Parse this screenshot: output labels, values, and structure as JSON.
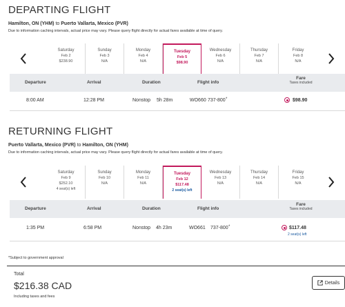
{
  "departing": {
    "title": "DEPARTING FLIGHT",
    "origin": "Hamilton, ON (YHM)",
    "to": "to",
    "destination": "Puerto Vallarta, Mexico (PVR)",
    "disclaimer": "Due to information caching intervals, actual price may vary. Please query flight directly for actual fares available at time of query.",
    "days": [
      {
        "weekday": "Saturday",
        "date": "Feb 2",
        "price": "$238.90",
        "seats": ""
      },
      {
        "weekday": "Sunday",
        "date": "Feb 3",
        "price": "N/A",
        "seats": ""
      },
      {
        "weekday": "Monday",
        "date": "Feb 4",
        "price": "N/A",
        "seats": ""
      },
      {
        "weekday": "Tuesday",
        "date": "Feb 5",
        "price": "$98.90",
        "seats": ""
      },
      {
        "weekday": "Wednesday",
        "date": "Feb 6",
        "price": "N/A",
        "seats": ""
      },
      {
        "weekday": "Thursday",
        "date": "Feb 7",
        "price": "N/A",
        "seats": ""
      },
      {
        "weekday": "Friday",
        "date": "Feb 8",
        "price": "N/A",
        "seats": ""
      }
    ],
    "headers": {
      "departure": "Departure",
      "arrival": "Arrival",
      "duration": "Duration",
      "flight_info": "Flight info",
      "fare": "Fare",
      "fare_sub": "Taxes included"
    },
    "flight": {
      "departure": "8:00 AM",
      "arrival": "12:28 PM",
      "stops": "Nonstop",
      "duration": "5h 28m",
      "flight_no": "WO660",
      "aircraft": "737-800",
      "mark": "*",
      "fare": "$98.90",
      "seats": ""
    }
  },
  "returning": {
    "title": "RETURNING FLIGHT",
    "origin": "Puerto Vallarta, Mexico (PVR)",
    "to": "to",
    "destination": "Hamilton, ON (YHM)",
    "disclaimer": "Due to information caching intervals, actual price may vary. Please query flight directly for actual fares available at time of query.",
    "days": [
      {
        "weekday": "Saturday",
        "date": "Feb 9",
        "price": "$252.10",
        "seats": "4 seat(s) left"
      },
      {
        "weekday": "Sunday",
        "date": "Feb 10",
        "price": "N/A",
        "seats": ""
      },
      {
        "weekday": "Monday",
        "date": "Feb 11",
        "price": "N/A",
        "seats": ""
      },
      {
        "weekday": "Tuesday",
        "date": "Feb 12",
        "price": "$117.48",
        "seats": "2 seat(s) left"
      },
      {
        "weekday": "Wednesday",
        "date": "Feb 13",
        "price": "N/A",
        "seats": ""
      },
      {
        "weekday": "Thursday",
        "date": "Feb 14",
        "price": "N/A",
        "seats": ""
      },
      {
        "weekday": "Friday",
        "date": "Feb 15",
        "price": "N/A",
        "seats": ""
      }
    ],
    "headers": {
      "departure": "Departure",
      "arrival": "Arrival",
      "duration": "Duration",
      "flight_info": "Flight info",
      "fare": "Fare",
      "fare_sub": "Taxes included"
    },
    "flight": {
      "departure": "1:35 PM",
      "arrival": "6:58 PM",
      "stops": "Nonstop",
      "duration": "4h 23m",
      "flight_no": "WO661",
      "aircraft": "737-800",
      "mark": "*",
      "fare": "$117.48",
      "seats": "2 seat(s) left"
    }
  },
  "footnote": "*Subject to government approval",
  "total": {
    "label": "Total",
    "amount": "$216.38 CAD",
    "sub": "Including taxes and fees",
    "details_label": "Details"
  },
  "colors": {
    "accent": "#c2185b",
    "link": "#1a5aa0",
    "header_bg": "#e9ebee"
  }
}
